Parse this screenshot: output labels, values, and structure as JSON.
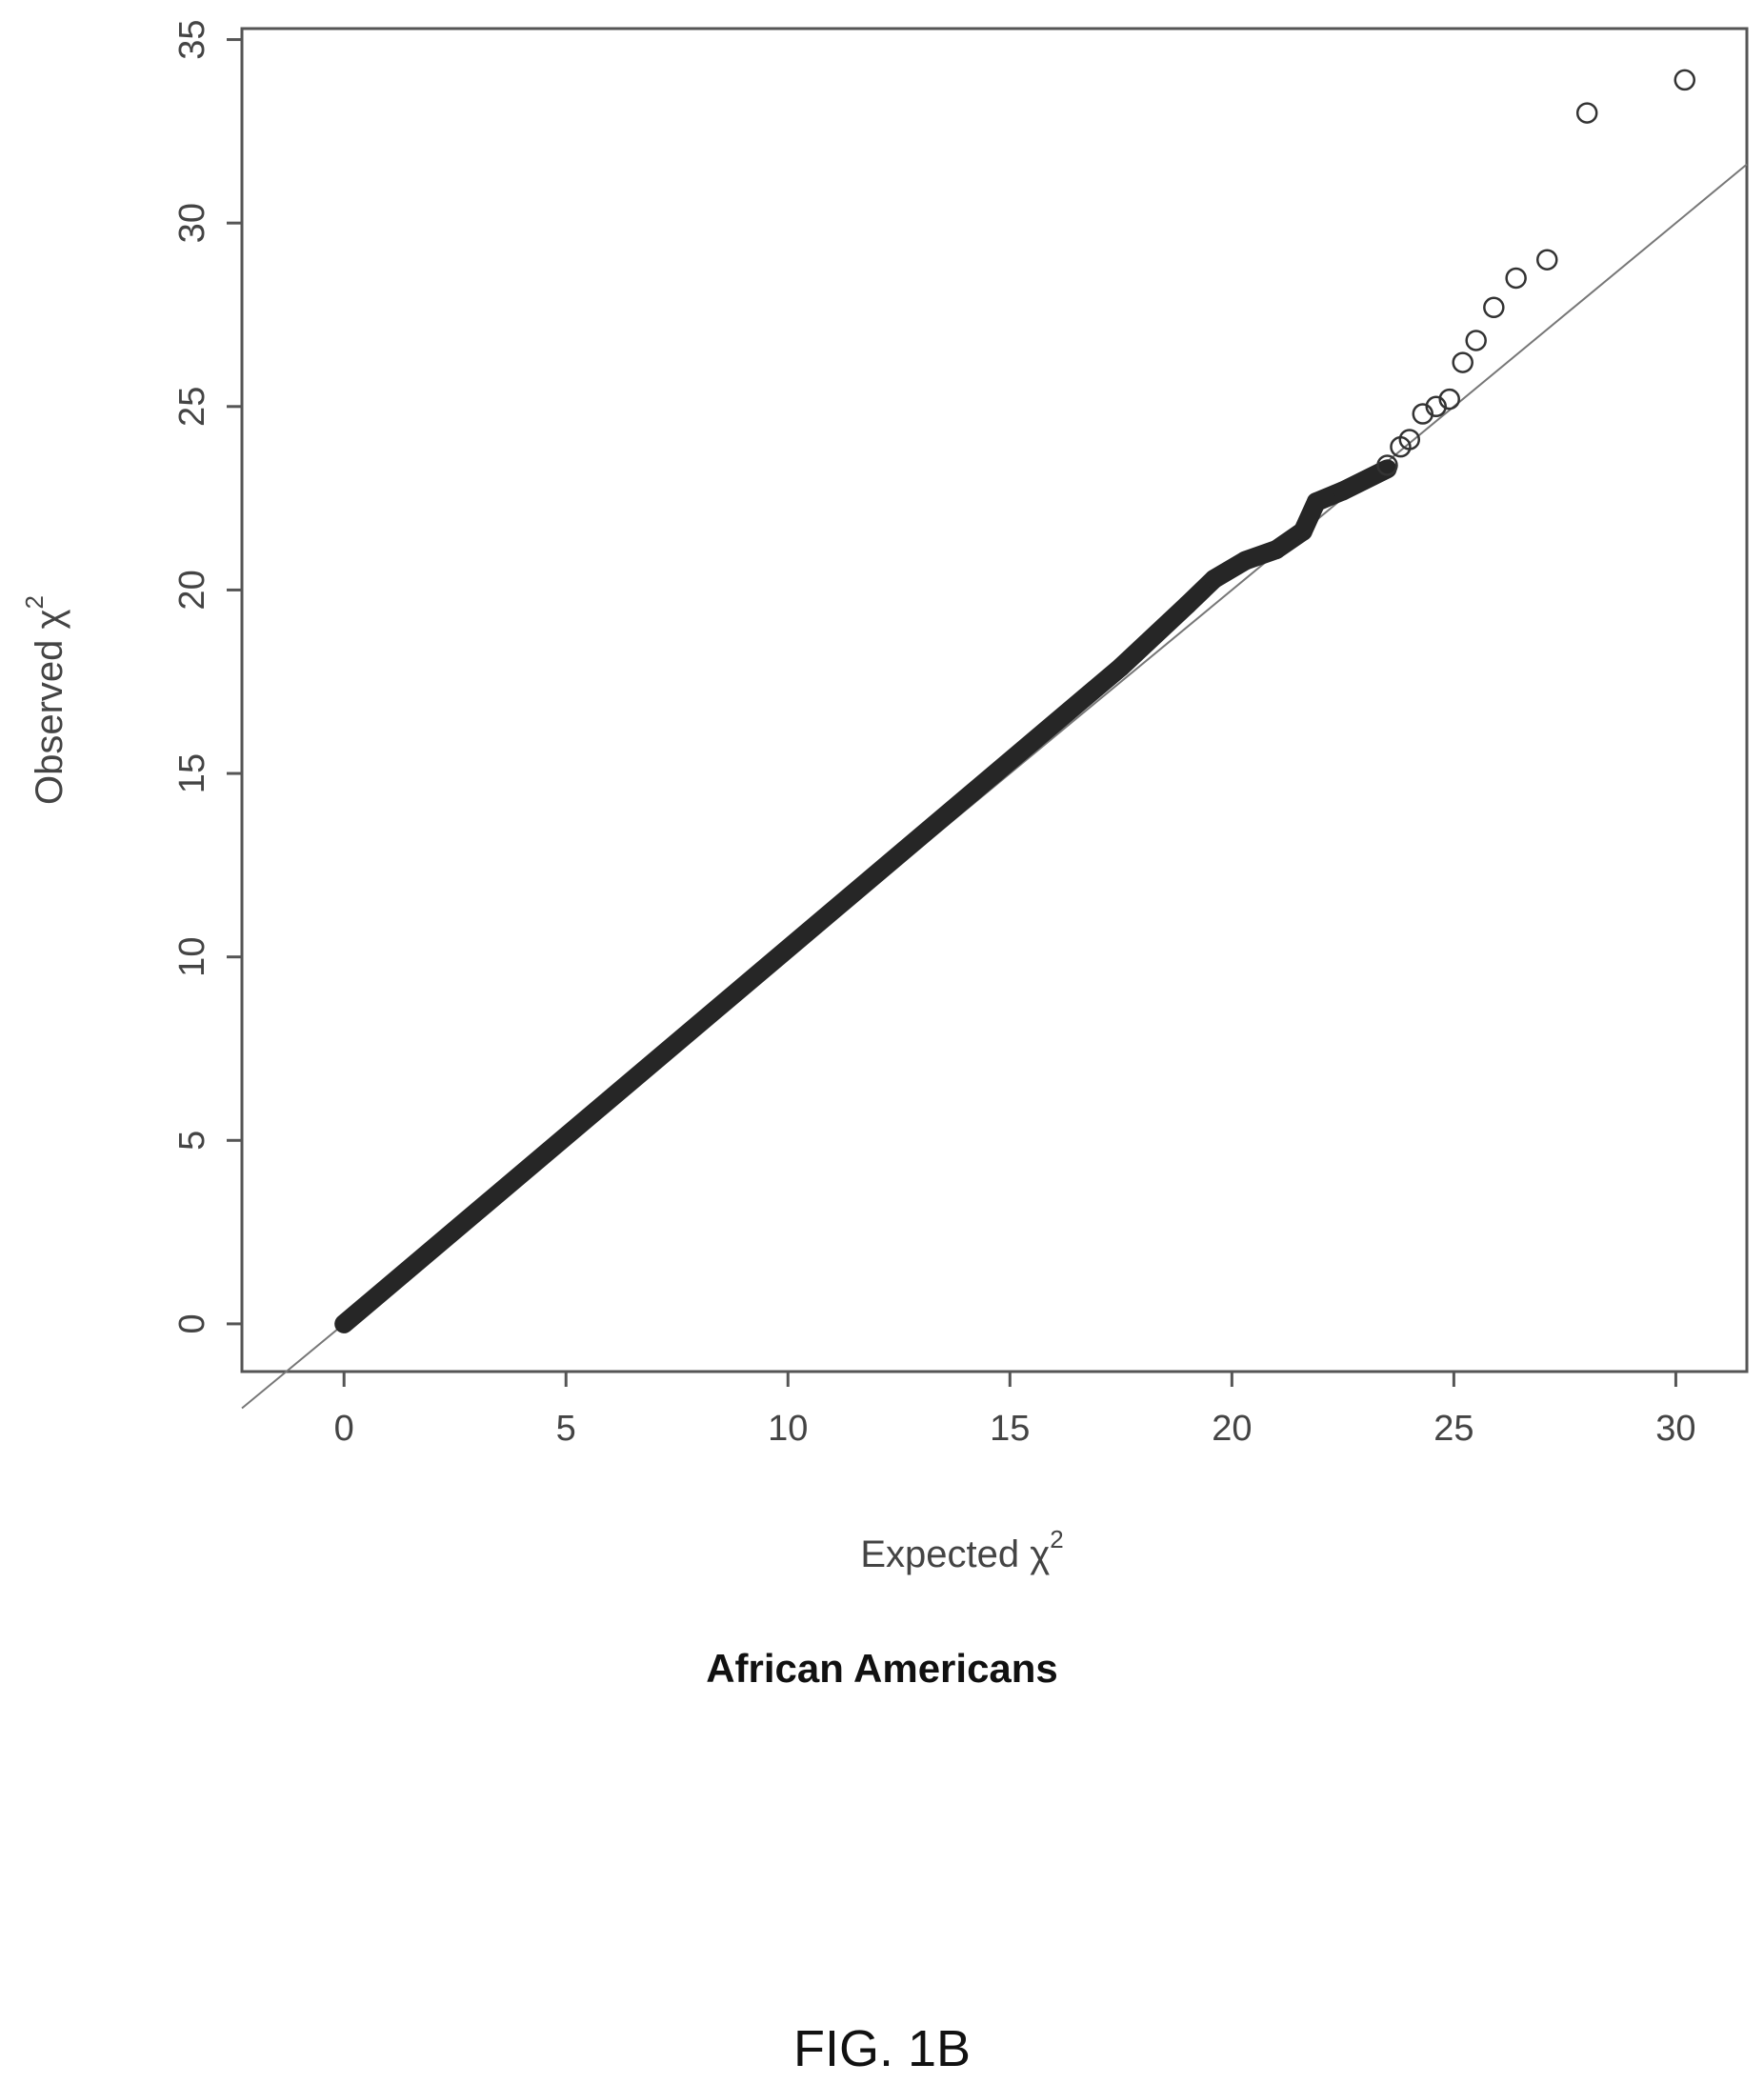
{
  "chart_data": {
    "type": "scatter",
    "xlabel": "Expected χ",
    "xlabel_sup": "2",
    "ylabel": "Observed χ",
    "ylabel_sup": "2",
    "xlim": [
      -2.3,
      31.6
    ],
    "ylim": [
      -1.3,
      35.3
    ],
    "x_ticks": [
      0,
      5,
      10,
      15,
      20,
      25,
      30
    ],
    "y_ticks": [
      0,
      5,
      10,
      15,
      20,
      25,
      30,
      35
    ],
    "reference_line": {
      "slope": 1,
      "intercept": 0
    },
    "dense_segments": [
      {
        "x": [
          0,
          17.5
        ],
        "y": [
          0,
          17.9
        ]
      },
      {
        "x": [
          17.5,
          19.0
        ],
        "y": [
          17.9,
          19.6
        ]
      },
      {
        "x": [
          19.0,
          19.6
        ],
        "y": [
          19.6,
          20.3
        ]
      },
      {
        "x": [
          19.6,
          20.3
        ],
        "y": [
          20.3,
          20.8
        ]
      },
      {
        "x": [
          20.3,
          21.0
        ],
        "y": [
          20.8,
          21.1
        ]
      },
      {
        "x": [
          21.0,
          21.6
        ],
        "y": [
          21.1,
          21.6
        ]
      },
      {
        "x": [
          21.6,
          21.9
        ],
        "y": [
          21.6,
          22.4
        ]
      },
      {
        "x": [
          21.9,
          22.5
        ],
        "y": [
          22.4,
          22.7
        ]
      },
      {
        "x": [
          22.5,
          23.5
        ],
        "y": [
          22.7,
          23.3
        ]
      }
    ],
    "points": [
      {
        "x": 23.5,
        "y": 23.4
      },
      {
        "x": 23.8,
        "y": 23.9
      },
      {
        "x": 24.0,
        "y": 24.1
      },
      {
        "x": 24.3,
        "y": 24.8
      },
      {
        "x": 24.6,
        "y": 25.0
      },
      {
        "x": 24.9,
        "y": 25.2
      },
      {
        "x": 25.2,
        "y": 26.2
      },
      {
        "x": 25.5,
        "y": 26.8
      },
      {
        "x": 25.9,
        "y": 27.7
      },
      {
        "x": 26.4,
        "y": 28.5
      },
      {
        "x": 27.1,
        "y": 29.0
      },
      {
        "x": 28.0,
        "y": 33.0
      },
      {
        "x": 30.2,
        "y": 33.9
      }
    ]
  },
  "subtitle": "African Americans",
  "figure_label": "FIG. 1B"
}
